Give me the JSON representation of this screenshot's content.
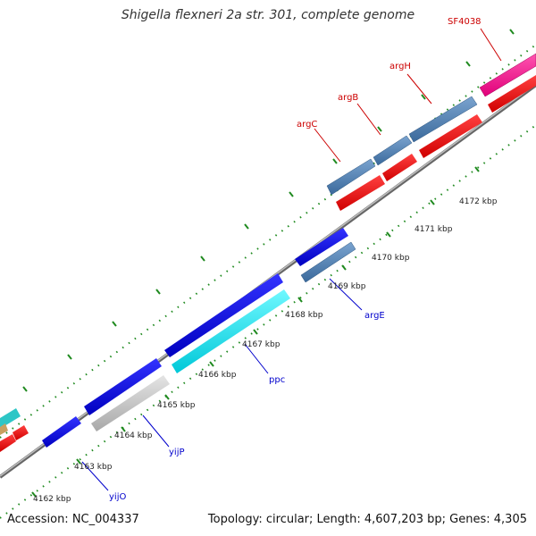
{
  "title": "Shigella flexneri 2a str. 301, complete genome",
  "footer": {
    "accession": "Accession: NC_004337",
    "summary": "Topology: circular; Length: 4,607,203 bp; Genes: 4,305"
  },
  "scale_labels": [
    "4162 kbp",
    "4163 kbp",
    "4164 kbp",
    "4165 kbp",
    "4166 kbp",
    "4167 kbp",
    "4168 kbp",
    "4169 kbp",
    "4170 kbp",
    "4171 kbp",
    "4172 kbp"
  ],
  "gene_labels": {
    "argC": "argC",
    "argB": "argB",
    "argH": "argH",
    "SF4038": "SF4038",
    "argE": "argE",
    "ppc": "ppc",
    "yijP": "yijP",
    "yijO": "yijO"
  },
  "colors": {
    "forward_gene": "#4f7fb3",
    "forward_cds": "#ff0000",
    "reverse_gene": "#0000ee",
    "reverse_cds_ppc": "#00e5ee",
    "reverse_cds_yijP": "#c8c8c8",
    "reverse_cds_argE": "#4f7fb3",
    "backbone": "#888888",
    "tick": "#1f8a1f",
    "label_red": "#cc0000",
    "label_blue": "#0000cc",
    "pink_gene": "#ff1493"
  }
}
